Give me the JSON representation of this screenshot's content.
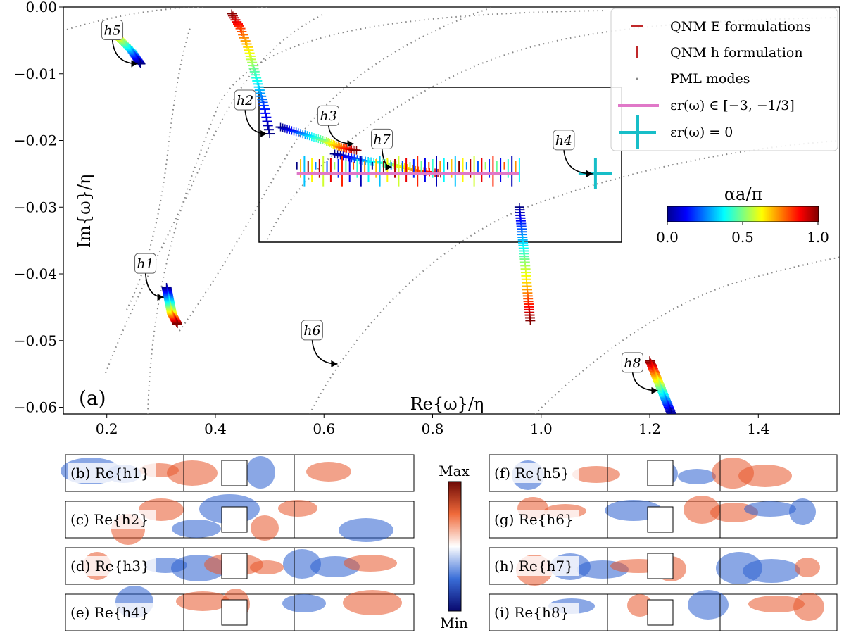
{
  "chart_data": {
    "type": "scatter",
    "panel_label": "(a)",
    "xlabel": "Re{ω}/η",
    "ylabel": "Im{ω}/η",
    "xlim": [
      0.12,
      1.55
    ],
    "ylim": [
      -0.061,
      0.0
    ],
    "xticks": [
      0.2,
      0.4,
      0.6,
      0.8,
      1.0,
      1.2,
      1.4
    ],
    "yticks": [
      0.0,
      -0.01,
      -0.02,
      -0.03,
      -0.04,
      -0.05,
      -0.06
    ],
    "xtick_labels": [
      "0.2",
      "0.4",
      "0.6",
      "0.8",
      "1.0",
      "1.2",
      "1.4"
    ],
    "ytick_labels": [
      "0.00",
      "−0.01",
      "−0.02",
      "−0.03",
      "−0.04",
      "−0.05",
      "−0.06"
    ],
    "legend": {
      "placement": "top-right",
      "entries": [
        "QNM E formulations",
        "QNM h formulation",
        "PML modes",
        "εr(ω) ∈ [−3, −1/3]",
        "εr(ω) = 0"
      ]
    },
    "colorbar": {
      "label": "αa/π",
      "ticks": [
        "0.0",
        "0.5",
        "1.0"
      ],
      "range": [
        0,
        1
      ],
      "placement": "right"
    },
    "inset_box": {
      "x": [
        0.48,
        1.15
      ],
      "y": [
        -0.035,
        -0.012
      ]
    },
    "plasmon_line": {
      "x": [
        0.55,
        0.96
      ],
      "y": -0.025,
      "color": "#e078c8"
    },
    "epsilon_zero_point": {
      "x": 1.1,
      "y": -0.025,
      "color": "#17bec8"
    },
    "qnm_tracks": [
      {
        "name": "h5",
        "points": [
          [
            0.2,
            -0.003
          ],
          [
            0.22,
            -0.0045
          ],
          [
            0.245,
            -0.0065
          ],
          [
            0.262,
            -0.0085
          ]
        ]
      },
      {
        "name": "h2",
        "points": [
          [
            0.43,
            -0.001
          ],
          [
            0.445,
            -0.003
          ],
          [
            0.46,
            -0.006
          ],
          [
            0.47,
            -0.009
          ],
          [
            0.48,
            -0.012
          ],
          [
            0.49,
            -0.015
          ],
          [
            0.5,
            -0.019
          ]
        ]
      },
      {
        "name": "h3",
        "points": [
          [
            0.52,
            -0.018
          ],
          [
            0.56,
            -0.019
          ],
          [
            0.6,
            -0.02
          ],
          [
            0.63,
            -0.021
          ],
          [
            0.66,
            -0.0215
          ]
        ]
      },
      {
        "name": "h7",
        "points": [
          [
            0.62,
            -0.022
          ],
          [
            0.67,
            -0.023
          ],
          [
            0.72,
            -0.0235
          ],
          [
            0.77,
            -0.0245
          ],
          [
            0.82,
            -0.025
          ]
        ]
      },
      {
        "name": "h4-branch",
        "points": [
          [
            0.96,
            -0.03
          ],
          [
            0.965,
            -0.034
          ],
          [
            0.97,
            -0.038
          ],
          [
            0.975,
            -0.043
          ],
          [
            0.98,
            -0.047
          ]
        ]
      },
      {
        "name": "h1",
        "points": [
          [
            0.31,
            -0.042
          ],
          [
            0.315,
            -0.044
          ],
          [
            0.32,
            -0.046
          ],
          [
            0.33,
            -0.0475
          ]
        ]
      },
      {
        "name": "h8",
        "points": [
          [
            1.2,
            -0.053
          ],
          [
            1.21,
            -0.055
          ],
          [
            1.22,
            -0.057
          ],
          [
            1.23,
            -0.059
          ],
          [
            1.24,
            -0.061
          ]
        ]
      }
    ],
    "annotations": [
      {
        "label": "h5",
        "target": [
          0.262,
          -0.0085
        ]
      },
      {
        "label": "h2",
        "target": [
          0.5,
          -0.019
        ]
      },
      {
        "label": "h3",
        "target": [
          0.66,
          -0.0205
        ]
      },
      {
        "label": "h7",
        "target": [
          0.73,
          -0.024
        ]
      },
      {
        "label": "h4",
        "target": [
          1.1,
          -0.025
        ]
      },
      {
        "label": "h1",
        "target": [
          0.31,
          -0.0435
        ]
      },
      {
        "label": "h6",
        "target": [
          0.63,
          -0.0535
        ]
      },
      {
        "label": "h8",
        "target": [
          1.22,
          -0.0575
        ]
      }
    ]
  },
  "field_panels": {
    "colorbar_max": "Max",
    "colorbar_min": "Min",
    "panels": [
      {
        "id": "b",
        "text": "(b) Re{h1}"
      },
      {
        "id": "c",
        "text": "(c) Re{h2}"
      },
      {
        "id": "d",
        "text": "(d) Re{h3}"
      },
      {
        "id": "e",
        "text": "(e) Re{h4}"
      },
      {
        "id": "f",
        "text": "(f) Re{h5}"
      },
      {
        "id": "g",
        "text": "(g) Re{h6}"
      },
      {
        "id": "h",
        "text": "(h) Re{h7}"
      },
      {
        "id": "i",
        "text": "(i) Re{h8}"
      }
    ]
  }
}
